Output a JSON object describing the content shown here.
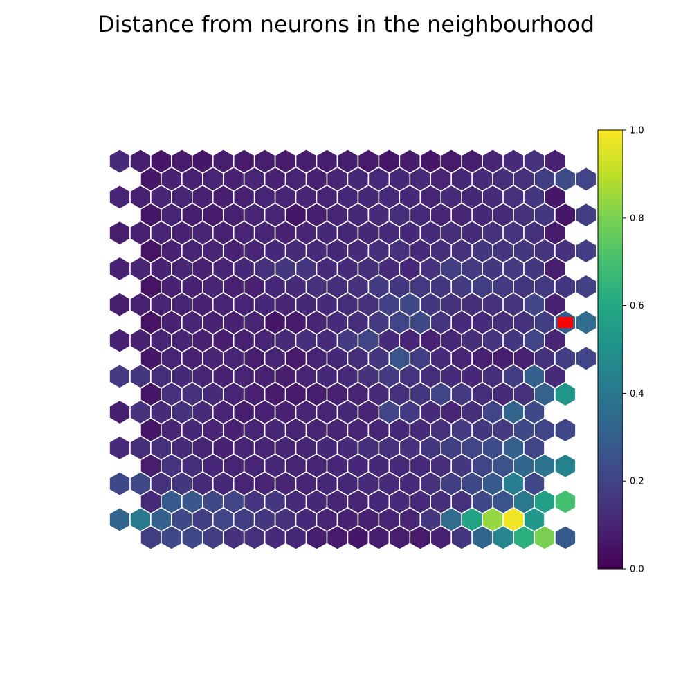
{
  "chart_data": {
    "type": "heatmap",
    "grid_shape": "hexagonal",
    "title": "Distance from neurons in the neighbourhood",
    "rows": 22,
    "cols": 22,
    "colormap": "viridis",
    "colorbar": {
      "range": [
        0,
        1
      ],
      "ticks": [
        0.0,
        0.2,
        0.4,
        0.6,
        0.8,
        1.0
      ],
      "tick_labels": [
        "0.0",
        "0.2",
        "0.4",
        "0.6",
        "0.8",
        "1.0"
      ]
    },
    "marker": {
      "row": 9,
      "col": 21,
      "color": "#ff0000"
    },
    "values": [
      [
        0.12,
        0.08,
        0.06,
        0.07,
        0.06,
        0.08,
        0.07,
        0.08,
        0.07,
        0.08,
        0.08,
        0.08,
        0.07,
        0.06,
        0.07,
        0.06,
        0.07,
        0.08,
        0.1,
        0.12,
        0.14,
        0.09,
        null
      ],
      [
        null,
        0.06,
        0.09,
        0.09,
        0.1,
        0.09,
        0.1,
        0.09,
        0.1,
        0.09,
        0.1,
        0.11,
        0.12,
        0.11,
        0.12,
        0.1,
        0.11,
        0.12,
        0.13,
        0.14,
        0.18,
        0.23,
        0.2
      ],
      [
        0.1,
        0.09,
        0.1,
        0.1,
        0.09,
        0.08,
        0.09,
        0.1,
        0.1,
        0.1,
        0.1,
        0.11,
        0.11,
        0.12,
        0.11,
        0.1,
        0.12,
        0.11,
        0.12,
        0.14,
        0.16,
        0.06,
        null
      ],
      [
        null,
        0.06,
        0.1,
        0.08,
        0.07,
        0.09,
        0.1,
        0.1,
        0.06,
        0.08,
        0.1,
        0.11,
        0.12,
        0.13,
        0.12,
        0.1,
        0.1,
        0.11,
        0.12,
        0.14,
        0.16,
        0.06,
        0.18
      ],
      [
        0.08,
        0.09,
        0.1,
        0.09,
        0.1,
        0.09,
        0.1,
        0.1,
        0.09,
        0.1,
        0.11,
        0.11,
        0.11,
        0.12,
        0.11,
        0.12,
        0.13,
        0.12,
        0.14,
        0.15,
        0.14,
        0.07,
        null
      ],
      [
        null,
        0.05,
        0.09,
        0.1,
        0.1,
        0.09,
        0.1,
        0.11,
        0.12,
        0.12,
        0.11,
        0.12,
        0.13,
        0.14,
        0.12,
        0.13,
        0.14,
        0.16,
        0.15,
        0.16,
        0.15,
        0.14,
        0.18
      ],
      [
        0.09,
        0.1,
        0.09,
        0.1,
        0.09,
        0.1,
        0.11,
        0.14,
        0.16,
        0.15,
        0.12,
        0.12,
        0.13,
        0.12,
        0.11,
        0.14,
        0.18,
        0.17,
        0.16,
        0.17,
        0.16,
        0.08,
        null
      ],
      [
        null,
        0.05,
        0.09,
        0.09,
        0.1,
        0.09,
        0.09,
        0.11,
        0.12,
        0.14,
        0.13,
        0.14,
        0.17,
        0.16,
        0.17,
        0.16,
        0.17,
        0.18,
        0.17,
        0.16,
        0.17,
        0.16,
        0.19
      ],
      [
        0.08,
        0.09,
        0.1,
        0.1,
        0.09,
        0.1,
        0.1,
        0.11,
        0.1,
        0.11,
        0.12,
        0.13,
        0.14,
        0.19,
        0.22,
        0.16,
        0.14,
        0.13,
        0.14,
        0.15,
        0.2,
        0.09,
        null
      ],
      [
        null,
        0.05,
        0.09,
        0.1,
        0.09,
        0.09,
        0.1,
        0.06,
        0.07,
        0.1,
        0.12,
        0.13,
        0.17,
        0.2,
        0.22,
        0.15,
        0.12,
        0.12,
        0.13,
        0.14,
        0.18,
        0.29,
        0.35
      ],
      [
        0.09,
        0.09,
        0.1,
        0.1,
        0.09,
        0.08,
        0.09,
        0.1,
        0.12,
        0.13,
        0.12,
        0.17,
        0.2,
        0.12,
        0.1,
        0.09,
        0.11,
        0.13,
        0.15,
        0.16,
        0.2,
        0.1,
        null
      ],
      [
        null,
        0.06,
        0.1,
        0.09,
        0.1,
        0.1,
        0.08,
        0.1,
        0.07,
        0.1,
        0.11,
        0.13,
        0.16,
        0.26,
        0.18,
        0.12,
        0.1,
        0.09,
        0.08,
        0.09,
        0.14,
        0.18,
        0.2
      ],
      [
        0.17,
        0.16,
        0.13,
        0.11,
        0.1,
        0.09,
        0.1,
        0.09,
        0.08,
        0.1,
        0.11,
        0.12,
        0.14,
        0.17,
        0.15,
        0.13,
        0.12,
        0.11,
        0.13,
        0.18,
        0.3,
        0.12,
        null
      ],
      [
        null,
        0.06,
        0.14,
        0.14,
        0.12,
        0.1,
        0.09,
        0.07,
        0.07,
        0.08,
        0.09,
        0.1,
        0.12,
        0.14,
        0.16,
        0.2,
        0.17,
        0.13,
        0.12,
        0.14,
        0.31,
        0.52,
        null
      ],
      [
        0.08,
        0.14,
        0.12,
        0.14,
        0.12,
        0.1,
        0.08,
        0.09,
        0.09,
        0.1,
        0.1,
        0.11,
        0.1,
        0.2,
        0.17,
        0.12,
        0.1,
        0.13,
        0.2,
        0.32,
        0.22,
        null,
        null
      ],
      [
        null,
        0.06,
        0.1,
        0.11,
        0.1,
        0.09,
        0.1,
        0.1,
        0.1,
        0.1,
        0.1,
        0.1,
        0.1,
        0.11,
        0.12,
        0.14,
        0.17,
        0.16,
        0.17,
        0.22,
        0.2,
        0.21,
        null
      ],
      [
        0.12,
        0.13,
        0.14,
        0.12,
        0.1,
        0.09,
        0.1,
        0.1,
        0.1,
        0.1,
        0.11,
        0.12,
        0.13,
        0.14,
        0.14,
        0.16,
        0.18,
        0.2,
        0.23,
        0.3,
        0.2,
        null,
        null
      ],
      [
        null,
        0.08,
        0.15,
        0.13,
        0.11,
        0.1,
        0.1,
        0.11,
        0.1,
        0.1,
        0.11,
        0.11,
        0.11,
        0.12,
        0.12,
        0.13,
        0.16,
        0.2,
        0.25,
        0.33,
        0.38,
        0.44,
        null
      ],
      [
        0.22,
        0.22,
        0.14,
        0.16,
        0.12,
        0.11,
        0.1,
        0.1,
        0.1,
        0.1,
        0.11,
        0.11,
        0.12,
        0.12,
        0.12,
        0.14,
        0.18,
        0.22,
        0.28,
        0.42,
        0.21,
        null,
        null
      ],
      [
        null,
        0.12,
        0.28,
        0.27,
        0.22,
        0.2,
        0.15,
        0.16,
        0.12,
        0.11,
        0.1,
        0.1,
        0.11,
        0.12,
        0.12,
        0.13,
        0.14,
        0.22,
        0.26,
        0.4,
        0.56,
        0.7,
        null
      ],
      [
        0.32,
        0.4,
        0.3,
        0.22,
        0.18,
        0.2,
        0.18,
        0.16,
        0.14,
        0.11,
        0.1,
        0.09,
        0.09,
        0.1,
        0.1,
        0.16,
        0.35,
        0.58,
        0.84,
        0.98,
        0.52,
        null,
        null
      ],
      [
        null,
        0.18,
        0.22,
        0.22,
        0.18,
        0.14,
        0.14,
        0.12,
        0.11,
        0.08,
        0.07,
        0.06,
        0.08,
        0.08,
        0.07,
        0.09,
        0.16,
        0.32,
        0.45,
        0.63,
        0.8,
        0.28,
        null
      ]
    ]
  }
}
